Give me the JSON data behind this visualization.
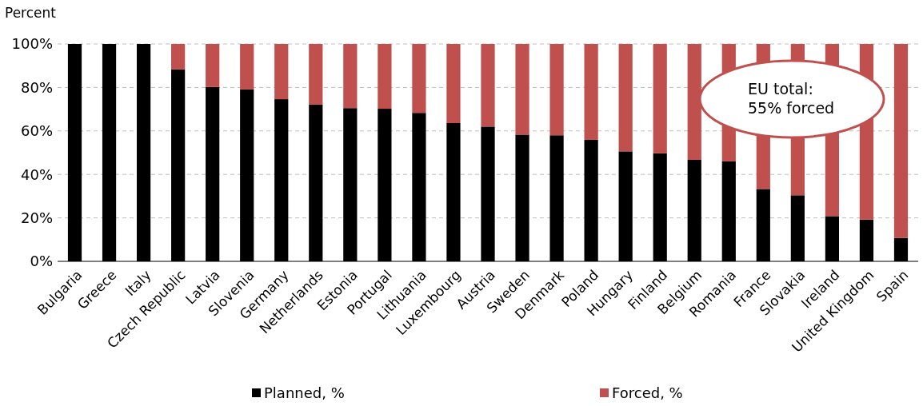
{
  "chart_data": {
    "type": "bar",
    "stacked": true,
    "ylabel": "Percent",
    "categories": [
      "Bulgaria",
      "Greece",
      "Italy",
      "Czech Republic",
      "Latvia",
      "Slovenia",
      "Germany",
      "Netherlands",
      "Estonia",
      "Portugal",
      "Lithuania",
      "Luxembourg",
      "Austria",
      "Sweden",
      "Denmark",
      "Poland",
      "Hungary",
      "Finland",
      "Belgium",
      "Romania",
      "France",
      "Slovakia",
      "Ireland",
      "United Kingdom",
      "Spain"
    ],
    "series": [
      {
        "name": "Planned, %",
        "color": "#000000",
        "values": [
          100,
          100,
          100,
          88.3,
          80.2,
          79.1,
          74.6,
          72.1,
          70.5,
          70.2,
          68.3,
          63.6,
          62,
          58.3,
          58,
          55.9,
          50.6,
          49.7,
          46.7,
          46,
          33.3,
          30.4,
          20.8,
          19.2,
          10.8
        ]
      },
      {
        "name": "Forced, %",
        "color": "#c0504d",
        "values": [
          0,
          0,
          0,
          11.7,
          19.8,
          20.9,
          25.4,
          27.9,
          29.5,
          29.8,
          31.7,
          36.4,
          38,
          41.7,
          42,
          44.1,
          49.4,
          50.3,
          53.3,
          54,
          66.7,
          69.6,
          79.2,
          80.8,
          89.2
        ]
      }
    ],
    "ylim": [
      0,
      100
    ],
    "yticks": [
      {
        "value": 0,
        "label": "0%"
      },
      {
        "value": 20,
        "label": "20%"
      },
      {
        "value": 40,
        "label": "40%"
      },
      {
        "value": 60,
        "label": "60%"
      },
      {
        "value": 80,
        "label": "80%"
      },
      {
        "value": 100,
        "label": "100%"
      }
    ],
    "grid": "y",
    "legend": "bottom",
    "annotations": [
      "EU total:\n55% forced"
    ]
  }
}
